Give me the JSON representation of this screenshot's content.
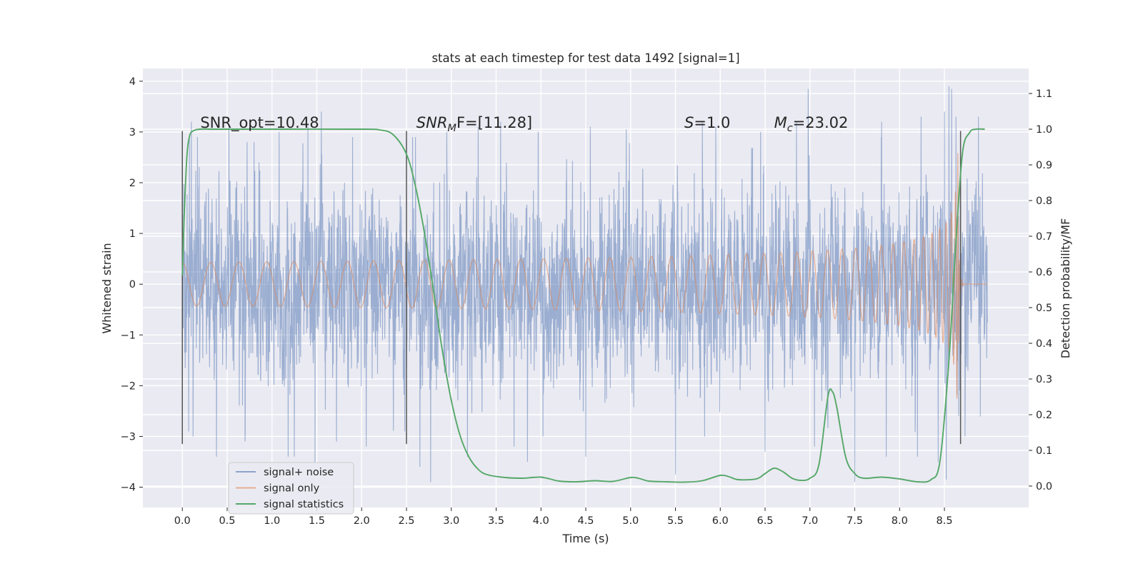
{
  "chart_data": {
    "type": "line",
    "title": "stats at each timestep for test data 1492 [signal=1]",
    "xlabel": "Time (s)",
    "ylabel": "Whitened strain",
    "y2label": "Detection probability/MF",
    "xlim": [
      -0.44,
      9.44
    ],
    "ylim": [
      -4.4,
      4.25
    ],
    "y2lim": [
      -0.06,
      1.17
    ],
    "x_ticks": [
      "0.0",
      "0.5",
      "1.0",
      "1.5",
      "2.0",
      "2.5",
      "3.0",
      "3.5",
      "4.0",
      "4.5",
      "5.0",
      "5.5",
      "6.0",
      "6.5",
      "7.0",
      "7.5",
      "8.0",
      "8.5"
    ],
    "y_ticks": [
      "4",
      "3",
      "2",
      "1",
      "0",
      "−1",
      "−2",
      "−3",
      "−4"
    ],
    "y2_ticks": [
      "1.1",
      "1.0",
      "0.9",
      "0.8",
      "0.7",
      "0.6",
      "0.5",
      "0.4",
      "0.3",
      "0.2",
      "0.1",
      "0.0"
    ],
    "grid": true,
    "legend_position": "lower-left",
    "colors": {
      "noise": "#4c72b0",
      "signal": "#dd8452",
      "stats": "#55a868",
      "background": "#eaeaf2",
      "grid": "#ffffff",
      "vline": "#555555"
    },
    "annotations": [
      {
        "kind": "plain",
        "text": "SNR_opt=10.48",
        "x": 0.2,
        "y": 3.08
      },
      {
        "kind": "sub",
        "base": "SNR",
        "sub": "M",
        "tail": "F=[11.28]",
        "x": 2.61,
        "y": 3.08
      },
      {
        "kind": "italic",
        "base": "S",
        "tail": "=1.0",
        "x": 5.6,
        "y": 3.08
      },
      {
        "kind": "sub",
        "base": "M",
        "sub": "c",
        "tail": "=23.02",
        "x": 6.6,
        "y": 3.08
      }
    ],
    "vertical_lines": [
      {
        "x": 0.0,
        "y": [
          -3.15,
          3.02
        ]
      },
      {
        "x": 2.5,
        "y": [
          -3.15,
          3.02
        ]
      },
      {
        "x": 8.68,
        "y": [
          -3.15,
          3.02
        ]
      }
    ],
    "series": [
      {
        "name": "signal+ noise",
        "axis": "left",
        "x_range": [
          0.0,
          8.98
        ],
        "amplitude_typical": 1.8,
        "peaks": [
          [
            0.1,
            3.2
          ],
          [
            0.17,
            2.9
          ],
          [
            0.52,
            3.1
          ],
          [
            0.7,
            3.8
          ],
          [
            0.8,
            2.8
          ],
          [
            1.08,
            3.0
          ],
          [
            1.4,
            3.1
          ],
          [
            1.55,
            3.4
          ],
          [
            1.9,
            2.9
          ],
          [
            2.6,
            2.9
          ],
          [
            2.95,
            3.0
          ],
          [
            3.3,
            3.1
          ],
          [
            3.55,
            3.2
          ],
          [
            3.97,
            3.0
          ],
          [
            4.55,
            3.1
          ],
          [
            4.95,
            3.05
          ],
          [
            5.5,
            3.4
          ],
          [
            5.8,
            3.2
          ],
          [
            5.95,
            3.1
          ],
          [
            6.45,
            3.0
          ],
          [
            6.85,
            3.2
          ],
          [
            6.98,
            3.85
          ],
          [
            7.8,
            3.2
          ],
          [
            8.24,
            3.3
          ],
          [
            8.5,
            3.4
          ],
          [
            8.55,
            3.9
          ],
          [
            8.58,
            3.85
          ],
          [
            8.63,
            3.3
          ],
          [
            8.88,
            3.3
          ]
        ],
        "troughs": [
          [
            0.07,
            -2.9
          ],
          [
            0.12,
            -3.0
          ],
          [
            0.38,
            -3.4
          ],
          [
            0.7,
            -3.1
          ],
          [
            1.18,
            -3.4
          ],
          [
            1.25,
            -3.4
          ],
          [
            1.48,
            -3.5
          ],
          [
            1.72,
            -3.1
          ],
          [
            2.05,
            -3.2
          ],
          [
            2.48,
            -2.9
          ],
          [
            2.65,
            -3.6
          ],
          [
            2.77,
            -3.9
          ],
          [
            3.18,
            -3.4
          ],
          [
            3.7,
            -3.2
          ],
          [
            3.85,
            -3.5
          ],
          [
            4.5,
            -3.4
          ],
          [
            5.5,
            -3.75
          ],
          [
            6.5,
            -3.3
          ],
          [
            7.05,
            -3.2
          ],
          [
            7.5,
            -3.9
          ],
          [
            7.85,
            -3.4
          ],
          [
            8.2,
            -3.4
          ],
          [
            8.43,
            -3.5
          ],
          [
            8.52,
            -3.85
          ],
          [
            8.66,
            -2.6
          ],
          [
            8.73,
            -3.0
          ]
        ]
      },
      {
        "name": "signal only",
        "axis": "left",
        "x_range": [
          0.0,
          8.98
        ],
        "peak_x": 8.65,
        "peak_amplitude": 2.65
      },
      {
        "name": "signal statistics",
        "axis": "right",
        "x": [
          0.0,
          0.02,
          0.05,
          0.08,
          0.12,
          0.2,
          0.4,
          1.0,
          2.0,
          2.2,
          2.35,
          2.5,
          2.6,
          2.7,
          2.8,
          2.9,
          3.0,
          3.1,
          3.2,
          3.3,
          3.4,
          3.6,
          3.8,
          3.9,
          4.0,
          4.1,
          4.2,
          4.4,
          4.6,
          4.8,
          5.0,
          5.1,
          5.2,
          5.4,
          5.6,
          5.8,
          6.0,
          6.1,
          6.2,
          6.4,
          6.5,
          6.6,
          6.7,
          6.8,
          6.9,
          7.0,
          7.1,
          7.2,
          7.25,
          7.3,
          7.4,
          7.5,
          7.6,
          7.8,
          8.0,
          8.2,
          8.35,
          8.45,
          8.55,
          8.62,
          8.7,
          8.78,
          8.85,
          8.95
        ],
        "values": [
          0.59,
          0.75,
          0.92,
          0.98,
          0.995,
          1.0,
          1.0,
          1.0,
          1.0,
          0.998,
          0.985,
          0.93,
          0.84,
          0.71,
          0.55,
          0.38,
          0.24,
          0.14,
          0.08,
          0.047,
          0.032,
          0.024,
          0.022,
          0.024,
          0.025,
          0.02,
          0.014,
          0.012,
          0.015,
          0.013,
          0.024,
          0.021,
          0.014,
          0.012,
          0.011,
          0.015,
          0.03,
          0.026,
          0.018,
          0.02,
          0.035,
          0.05,
          0.04,
          0.022,
          0.016,
          0.022,
          0.06,
          0.25,
          0.265,
          0.22,
          0.08,
          0.035,
          0.022,
          0.025,
          0.02,
          0.012,
          0.018,
          0.07,
          0.35,
          0.65,
          0.93,
          0.99,
          1.0,
          1.0
        ]
      }
    ]
  }
}
